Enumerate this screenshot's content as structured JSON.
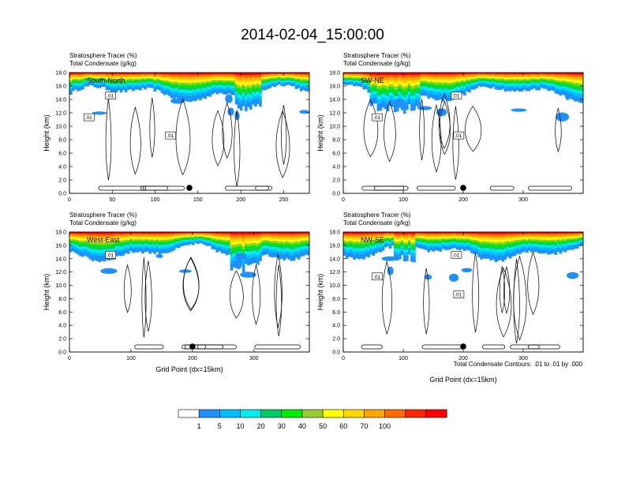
{
  "title": "2014-02-04_15:00:00",
  "footnote": "Total Condensate Contours: .01 to .01 by .000",
  "colorbar": {
    "colors": [
      "#ffffff",
      "#1e90ff",
      "#00bfff",
      "#00eeee",
      "#00cd66",
      "#00ee00",
      "#9acd32",
      "#ffff00",
      "#ffd700",
      "#ffa500",
      "#ff6a00",
      "#ff2400",
      "#ff0000"
    ],
    "labels": [
      "1",
      "5",
      "10",
      "20",
      "30",
      "40",
      "50",
      "60",
      "70",
      "100"
    ]
  },
  "chart_data": [
    {
      "type": "heatmap",
      "panel_label": "South-North",
      "subtitle_lines": [
        "Stratosphere Tracer   (%)",
        "Total Condensate   (g/kg)"
      ],
      "ylabel": "Height (km)",
      "xlabel": "",
      "xlim": [
        0,
        280
      ],
      "ylim": [
        0,
        18
      ],
      "xticks": [
        "0",
        "50",
        "100",
        "150",
        "200",
        "250"
      ],
      "yticks": [
        "0.0",
        "2.0",
        "4.0",
        "6.0",
        "8.0",
        "10.0",
        "12.0",
        "14.0",
        "16.0",
        "18.0"
      ],
      "contour_labels": [
        ".01",
        ".01",
        ".01"
      ],
      "marker_x": 140
    },
    {
      "type": "heatmap",
      "panel_label": "SW-NE",
      "subtitle_lines": [
        "Stratosphere Tracer   (%)",
        "Total Condensate   (g/kg)"
      ],
      "ylabel": "Height (km)",
      "xlabel": "",
      "xlim": [
        0,
        400
      ],
      "ylim": [
        0,
        18
      ],
      "xticks": [
        "0",
        "100",
        "200",
        "300"
      ],
      "yticks": [
        "0.0",
        "2.0",
        "4.0",
        "6.0",
        "8.0",
        "10.0",
        "12.0",
        "14.0",
        "16.0",
        "18.0"
      ],
      "contour_labels": [
        ".01",
        ".01",
        ".01"
      ],
      "marker_x": 200
    },
    {
      "type": "heatmap",
      "panel_label": "West-East",
      "subtitle_lines": [
        "Stratosphere Tracer   (%)",
        "Total Condensate   (g/kg)"
      ],
      "ylabel": "Height (km)",
      "xlabel": "Grid Point (dx=15km)",
      "xlim": [
        0,
        390
      ],
      "ylim": [
        0,
        18
      ],
      "xticks": [
        "0",
        "100",
        "200",
        "300"
      ],
      "yticks": [
        "0.0",
        "2.0",
        "4.0",
        "6.0",
        "8.0",
        "10.0",
        "12.0",
        "14.0",
        "16.0",
        "18.0"
      ],
      "contour_labels": [
        ".01"
      ],
      "marker_x": 200
    },
    {
      "type": "heatmap",
      "panel_label": "NW-SE",
      "subtitle_lines": [
        "Stratosphere Tracer   (%)",
        "Total Condensate   (g/kg)"
      ],
      "ylabel": "Height (km)",
      "xlabel": "Grid Point (dx=15km)",
      "xlim": [
        0,
        400
      ],
      "ylim": [
        0,
        18
      ],
      "xticks": [
        "0",
        "100",
        "200",
        "300"
      ],
      "yticks": [
        "0.0",
        "2.0",
        "4.0",
        "6.0",
        "8.0",
        "10.0",
        "12.0",
        "14.0",
        "16.0",
        "18.0"
      ],
      "contour_labels": [
        ".01",
        ".01",
        ".01"
      ],
      "marker_x": 200
    }
  ]
}
